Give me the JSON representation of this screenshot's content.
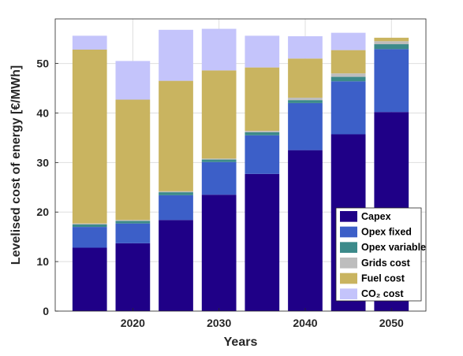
{
  "chart_data": {
    "type": "bar",
    "stacked": true,
    "xlabel": "Years",
    "ylabel": "Levelised cost of energy [€/MWh]",
    "ylim": [
      0,
      59
    ],
    "xlim": [
      2011,
      2054
    ],
    "grid": true,
    "legend_position": "bottom-right",
    "x": [
      2015,
      2020,
      2025,
      2030,
      2035,
      2040,
      2045,
      2050
    ],
    "xticks": [
      2020,
      2030,
      2040,
      2050
    ],
    "yticks": [
      0,
      10,
      20,
      30,
      40,
      50
    ],
    "series": [
      {
        "name": "Capex",
        "color": "#1f0087",
        "values": [
          12.8,
          13.7,
          18.4,
          23.5,
          27.7,
          32.5,
          35.7,
          40.2
        ]
      },
      {
        "name": "Opex fixed",
        "color": "#3c5fc8",
        "values": [
          4.2,
          4.0,
          5.0,
          6.6,
          7.8,
          9.5,
          10.7,
          12.7
        ]
      },
      {
        "name": "Opex variable",
        "color": "#3c8a8a",
        "values": [
          0.5,
          0.5,
          0.6,
          0.5,
          0.6,
          0.6,
          0.9,
          1.0
        ]
      },
      {
        "name": "Grids cost",
        "color": "#bdbdbd",
        "values": [
          0.2,
          0.2,
          0.2,
          0.2,
          0.3,
          0.5,
          0.7,
          0.6
        ]
      },
      {
        "name": "Fuel cost",
        "color": "#c9b460",
        "values": [
          35.1,
          24.3,
          22.3,
          17.8,
          12.8,
          7.9,
          4.7,
          0.7
        ]
      },
      {
        "name": "CO₂ cost",
        "color": "#c4c4fb",
        "values": [
          2.8,
          7.8,
          10.3,
          8.4,
          6.4,
          4.5,
          3.5,
          0.0
        ]
      }
    ]
  }
}
